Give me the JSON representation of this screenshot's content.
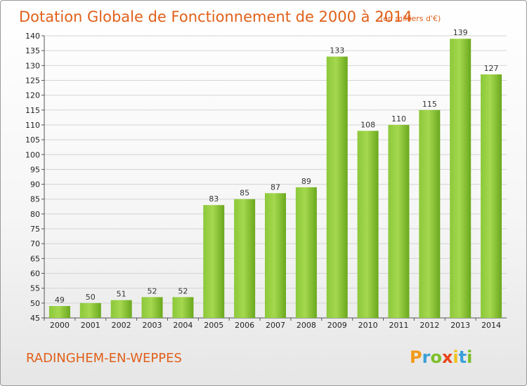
{
  "chart_data": {
    "type": "bar",
    "title": "Dotation Globale de Fonctionnement de 2000 à 2014",
    "subtitle": "(en milliers d'€)",
    "categories": [
      "2000",
      "2001",
      "2002",
      "2003",
      "2004",
      "2005",
      "2006",
      "2007",
      "2008",
      "2009",
      "2010",
      "2011",
      "2012",
      "2013",
      "2014"
    ],
    "values": [
      49,
      50,
      51,
      52,
      52,
      83,
      85,
      87,
      89,
      133,
      108,
      110,
      115,
      139,
      127
    ],
    "ylim": [
      45,
      140
    ],
    "yticks": [
      45,
      50,
      55,
      60,
      65,
      70,
      75,
      80,
      85,
      90,
      95,
      100,
      105,
      110,
      115,
      120,
      125,
      130,
      135,
      140
    ],
    "grid": true,
    "xlabel": "",
    "ylabel": "",
    "bar_color": "#7cbf2a",
    "bar_color_light": "#a5d84e"
  },
  "commune_name": "RADINGHEM-EN-WEPPES",
  "logo": {
    "letters": [
      "P",
      "r",
      "o",
      "x",
      "i",
      "t",
      "i"
    ],
    "colors": [
      "#f29a1a",
      "#3aa0d8",
      "#7cbf2a",
      "#e8441c",
      "#f2c21a",
      "#3aa0d8",
      "#7cbf2a"
    ]
  },
  "colors": {
    "title": "#e0601a",
    "grid": "#d4d4d4",
    "axis": "#555555"
  }
}
